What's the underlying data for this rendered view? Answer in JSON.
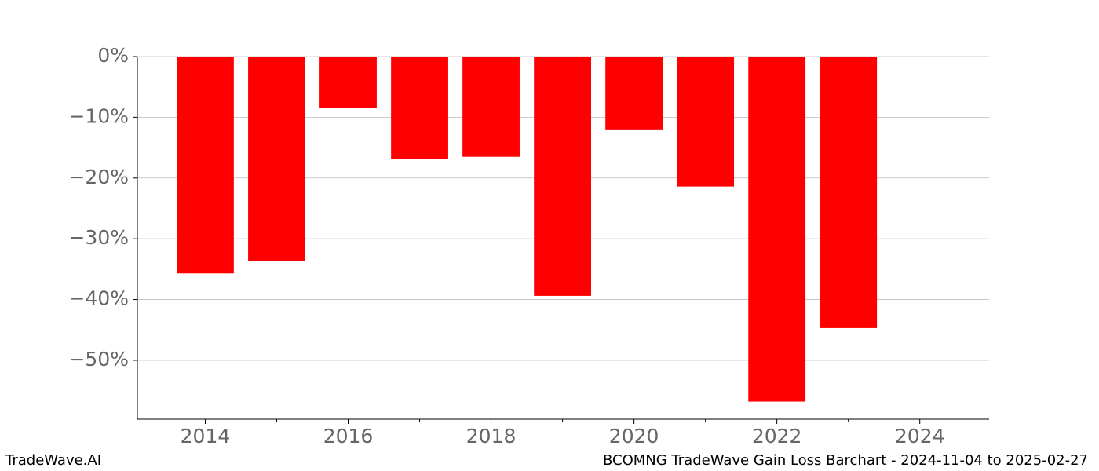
{
  "chart_data": {
    "type": "bar",
    "x": [
      2014,
      2015,
      2016,
      2017,
      2018,
      2019,
      2020,
      2021,
      2022,
      2023
    ],
    "values": [
      -35.7,
      -33.7,
      -8.4,
      -16.9,
      -16.5,
      -39.4,
      -12.0,
      -21.4,
      -56.8,
      -44.7
    ],
    "color": "#ff0000",
    "xlim": [
      2013.05,
      2024.97
    ],
    "xticks": [
      2014,
      2016,
      2018,
      2020,
      2022,
      2024
    ],
    "xminorticks": [
      2015,
      2017,
      2019,
      2021,
      2023
    ],
    "ylim": [
      -59.7,
      0
    ],
    "yticks": [
      {
        "value": 0,
        "label": "0%"
      },
      {
        "value": -10,
        "label": "−10%"
      },
      {
        "value": -20,
        "label": "−20%"
      },
      {
        "value": -30,
        "label": "−30%"
      },
      {
        "value": -40,
        "label": "−40%"
      },
      {
        "value": -50,
        "label": "−50%"
      }
    ],
    "grid": true
  },
  "footer": {
    "left": "TradeWave.AI",
    "right": "BCOMNG TradeWave Gain Loss Barchart - 2024-11-04 to 2025-02-27"
  }
}
